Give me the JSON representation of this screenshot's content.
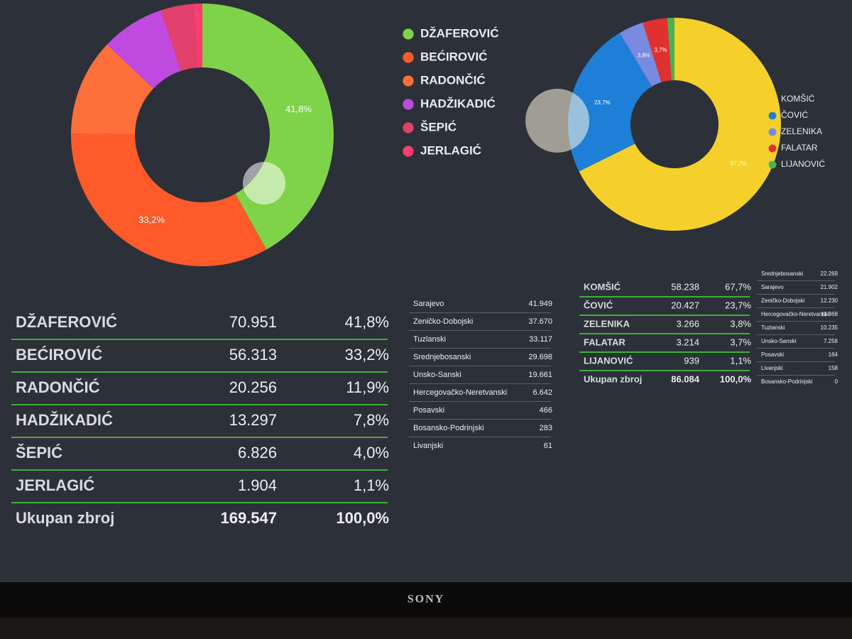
{
  "chart_data": [
    {
      "type": "pie",
      "donut": true,
      "categories": [
        "DŽAFEROVIĆ",
        "BEĆIROVIĆ",
        "RADONČIĆ",
        "HADŽIKADIĆ",
        "ŠEPIĆ",
        "JERLAGIĆ"
      ],
      "values": [
        41.8,
        33.2,
        11.9,
        7.8,
        4.0,
        1.1
      ],
      "value_labels": [
        "41,8%",
        "33,2%",
        null,
        null,
        null,
        null
      ],
      "colors": [
        "#7ed348",
        "#ff5a2a",
        "#ff6f3c",
        "#c04ae0",
        "#e0406a",
        "#ff3d6e"
      ]
    },
    {
      "type": "pie",
      "donut": true,
      "categories": [
        "KOMŠIĆ",
        "ČOVIĆ",
        "ZELENIKA",
        "FALATAR",
        "LIJANOVIĆ"
      ],
      "values": [
        67.7,
        23.7,
        3.8,
        3.7,
        1.1
      ],
      "value_labels": [
        "67,7%",
        "23,7%",
        "3,8%",
        "3,7%",
        null
      ],
      "colors": [
        "#f5d02a",
        "#1e7fd8",
        "#7a8ae0",
        "#e03030",
        "#4caf50"
      ]
    }
  ],
  "tables": [
    {
      "rows": [
        [
          "DŽAFEROVIĆ",
          "70.951",
          "41,8%"
        ],
        [
          "BEĆIROVIĆ",
          "56.313",
          "33,2%"
        ],
        [
          "RADONČIĆ",
          "20.256",
          "11,9%"
        ],
        [
          "HADŽIKADIĆ",
          "13.297",
          "7,8%"
        ],
        [
          "ŠEPIĆ",
          "6.826",
          "4,0%"
        ],
        [
          "JERLAGIĆ",
          "1.904",
          "1,1%"
        ]
      ],
      "total": [
        "Ukupan zbroj",
        "169.547",
        "100,0%"
      ]
    },
    {
      "rows": [
        [
          "Sarajevo",
          "41.949"
        ],
        [
          "Zeničko-Dobojski",
          "37.670"
        ],
        [
          "Tuzlanski",
          "33.117"
        ],
        [
          "Srednjebosanski",
          "29.698"
        ],
        [
          "Unsko-Sanski",
          "19.661"
        ],
        [
          "Hercegovačko-Neretvanski",
          "6.642"
        ],
        [
          "Posavski",
          "466"
        ],
        [
          "Bosansko-Podrinjski",
          "283"
        ],
        [
          "Livanjski",
          "61"
        ]
      ]
    },
    {
      "rows": [
        [
          "KOMŠIĆ",
          "58.238",
          "67,7%"
        ],
        [
          "ČOVIĆ",
          "20.427",
          "23,7%"
        ],
        [
          "ZELENIKA",
          "3.266",
          "3,8%"
        ],
        [
          "FALATAR",
          "3.214",
          "3,7%"
        ],
        [
          "LIJANOVIĆ",
          "939",
          "1,1%"
        ]
      ],
      "total": [
        "Ukupan zbroj",
        "86.084",
        "100,0%"
      ]
    },
    {
      "rows": [
        [
          "Srednjebosanski",
          "22.269"
        ],
        [
          "Sarajevo",
          "21.902"
        ],
        [
          "Zeničko-Dobojski",
          "12.230"
        ],
        [
          "Hercegovačko-Neretvanski",
          "11.868"
        ],
        [
          "Tuzlanski",
          "10.235"
        ],
        [
          "Unsko-Sanski",
          "7.258"
        ],
        [
          "Posavski",
          "164"
        ],
        [
          "Livanjski",
          "158"
        ],
        [
          "Bosansko-Podrinjski",
          "0"
        ]
      ]
    }
  ],
  "tv": {
    "brand": "SONY"
  }
}
